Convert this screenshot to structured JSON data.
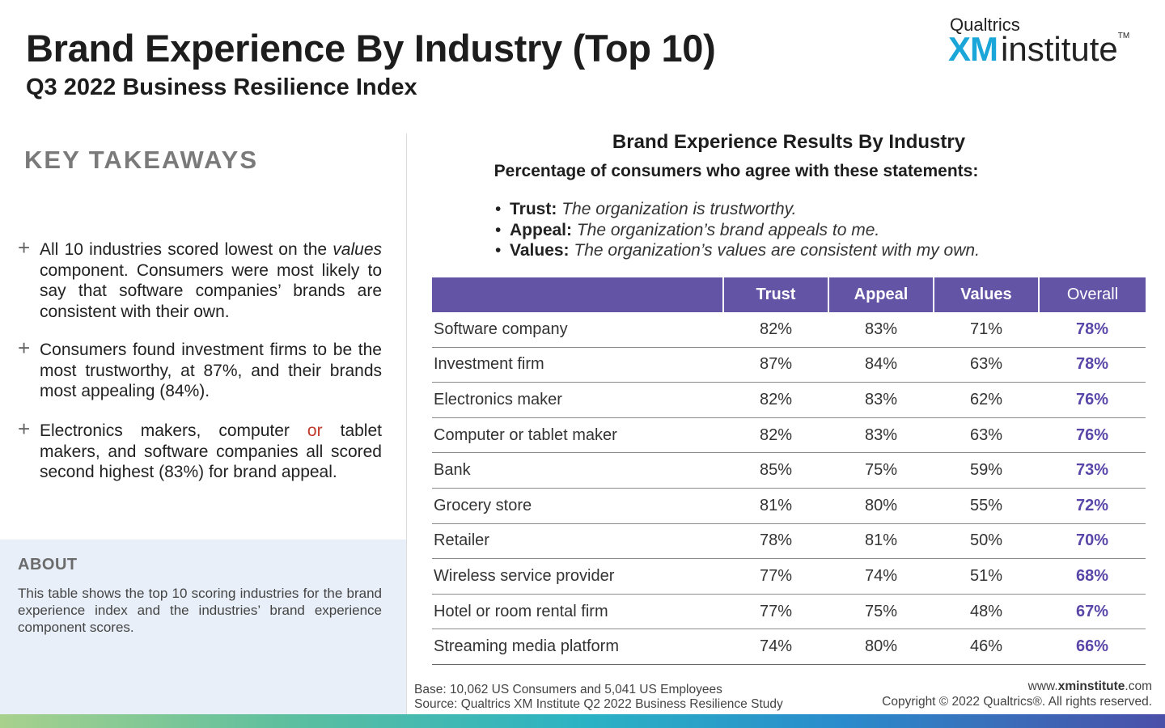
{
  "header": {
    "title": "Brand Experience By Industry (Top 10)",
    "subtitle": "Q3 2022 Business Resilience Index"
  },
  "logo": {
    "top": "Qualtrics",
    "xm": "XM",
    "institute": "institute",
    "tm": "TM"
  },
  "takeaways": {
    "heading": "KEY TAKEAWAYS",
    "plus": "+",
    "t1": {
      "a": "All 10 industries scored lowest on the ",
      "b": "values",
      "c": " component. Consumers were most likely to say that software companies’ brands are consistent with their own."
    },
    "t2": "Consumers found investment firms to be the most trustworthy, at 87%, and their brands most appealing (84%).",
    "t3": {
      "a": "Electronics makers, computer ",
      "b": "or",
      "c": " tablet makers, and software companies all scored second highest (83%) for brand appeal."
    }
  },
  "about": {
    "heading": "ABOUT",
    "text": "This table shows the top 10 scoring industries for the brand experience index and the industries’ brand experience component scores."
  },
  "chart": {
    "title": "Brand Experience Results By Industry",
    "subtitle": "Percentage of consumers who agree with these statements:",
    "bullet_char": "•",
    "statements": [
      {
        "label": "Trust:",
        "text": "The organization is trustworthy."
      },
      {
        "label": "Appeal:",
        "text": "The organization’s brand appeals to me."
      },
      {
        "label": "Values:",
        "text": "The organization’s values are consistent with my own."
      }
    ]
  },
  "table": {
    "headers": [
      "",
      "Trust",
      "Appeal",
      "Values",
      "Overall"
    ],
    "rows": [
      {
        "industry": "Software company",
        "trust": "82%",
        "appeal": "83%",
        "values": "71%",
        "overall": "78%"
      },
      {
        "industry": "Investment firm",
        "trust": "87%",
        "appeal": "84%",
        "values": "63%",
        "overall": "78%"
      },
      {
        "industry": "Electronics maker",
        "trust": "82%",
        "appeal": "83%",
        "values": "62%",
        "overall": "76%"
      },
      {
        "industry": "Computer or tablet maker",
        "trust": "82%",
        "appeal": "83%",
        "values": "63%",
        "overall": "76%"
      },
      {
        "industry": "Bank",
        "trust": "85%",
        "appeal": "75%",
        "values": "59%",
        "overall": "73%"
      },
      {
        "industry": "Grocery store",
        "trust": "81%",
        "appeal": "80%",
        "values": "55%",
        "overall": "72%"
      },
      {
        "industry": "Retailer",
        "trust": "78%",
        "appeal": "81%",
        "values": "50%",
        "overall": "70%"
      },
      {
        "industry": "Wireless service provider",
        "trust": "77%",
        "appeal": "74%",
        "values": "51%",
        "overall": "68%"
      },
      {
        "industry": "Hotel or room rental firm",
        "trust": "77%",
        "appeal": "75%",
        "values": "48%",
        "overall": "67%"
      },
      {
        "industry": "Streaming media platform",
        "trust": "74%",
        "appeal": "80%",
        "values": "46%",
        "overall": "66%"
      }
    ]
  },
  "footer": {
    "base": "Base: 10,062 US Consumers and 5,041 US Employees",
    "source": "Source: Qualtrics XM Institute Q2 2022 Business Resilience Study",
    "url_pre": "www.",
    "url_bold": "xminstitute",
    "url_post": ".com",
    "copyright": "Copyright © 2022 Qualtrics®. All rights reserved."
  },
  "colors": {
    "header_purple": "#6354a5",
    "overall_purple": "#5a46a8",
    "xm_blue": "#1aa6d8",
    "about_bg": "#e8eff8"
  }
}
